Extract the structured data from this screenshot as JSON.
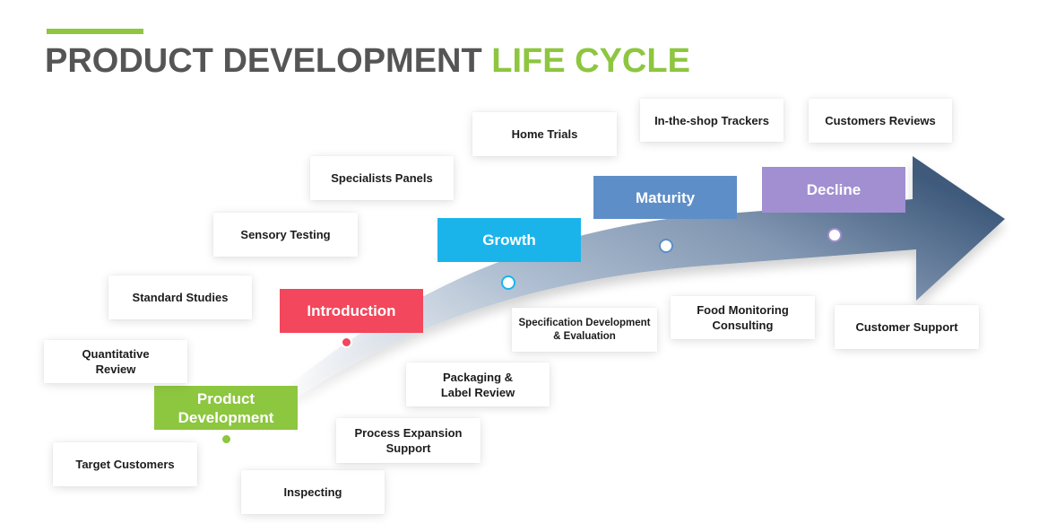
{
  "title": {
    "part1": "PRODUCT DEVELOPMENT ",
    "part2": "LIFE CYCLE"
  },
  "colors": {
    "accent_green": "#8dc63f",
    "title_gray": "#555555",
    "arrow_blue": "#3f5a7c",
    "introduction": "#f2475c",
    "growth": "#1bb4ea",
    "maturity": "#5e8ec7",
    "decline": "#a18fd1"
  },
  "stages": [
    {
      "id": "product-development",
      "label": "Product\nDevelopment",
      "color": "#8dc63f"
    },
    {
      "id": "introduction",
      "label": "Introduction",
      "color": "#f2475c"
    },
    {
      "id": "growth",
      "label": "Growth",
      "color": "#1bb4ea"
    },
    {
      "id": "maturity",
      "label": "Maturity",
      "color": "#5e8ec7"
    },
    {
      "id": "decline",
      "label": "Decline",
      "color": "#a18fd1"
    }
  ],
  "cards": {
    "target_customers": "Target Customers",
    "quantitative_review": "Quantitative\nReview",
    "standard_studies": "Standard Studies",
    "sensory_testing": "Sensory Testing",
    "specialists_panels": "Specialists Panels",
    "home_trials": "Home Trials",
    "in_the_shop_trackers": "In-the-shop Trackers",
    "customers_reviews": "Customers Reviews",
    "inspecting": "Inspecting",
    "process_expansion_support": "Process Expansion\nSupport",
    "packaging_label_review": "Packaging &\nLabel Review",
    "specification_development": "Specification Development\n& Evaluation",
    "food_monitoring_consulting": "Food Monitoring\nConsulting",
    "customer_support": "Customer Support"
  }
}
